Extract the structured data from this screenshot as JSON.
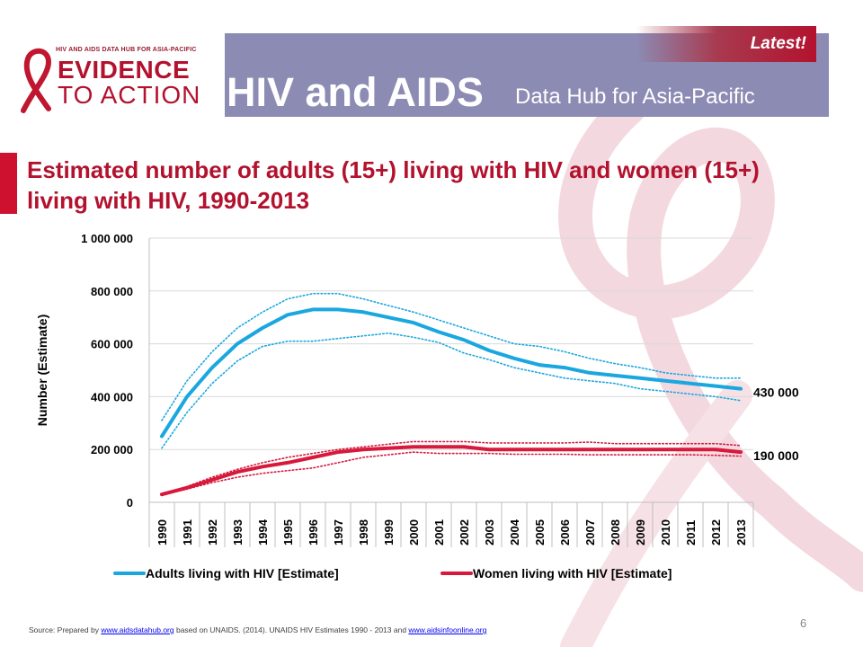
{
  "header": {
    "logo_top": "HIV AND AIDS DATA HUB FOR ASIA-PACIFIC",
    "logo_main": "EVIDENCE",
    "logo_sub": "TO ACTION",
    "title": "HIV and AIDS",
    "subtitle": "Data Hub for Asia-Pacific",
    "badge": "Latest!"
  },
  "colors": {
    "banner": "#8c8bb4",
    "brand_red": "#b3122e",
    "adults_series": "#1aa7e0",
    "women_series": "#d7193c"
  },
  "slide_title": "Estimated number of adults (15+) living with HIV and women (15+) living with HIV, 1990-2013",
  "chart_data": {
    "type": "line",
    "title": "Estimated number of adults (15+) living with HIV and women (15+) living with HIV, 1990-2013",
    "xlabel": "",
    "ylabel": "Number (Estimate)",
    "ylim": [
      0,
      1000000
    ],
    "yticks": [
      0,
      200000,
      400000,
      600000,
      800000,
      1000000
    ],
    "ytick_labels": [
      "0",
      "200 000",
      "400 000",
      "600 000",
      "800 000",
      "1 000 000"
    ],
    "grid": true,
    "legend_position": "bottom",
    "categories": [
      "1990",
      "1991",
      "1992",
      "1993",
      "1994",
      "1995",
      "1996",
      "1997",
      "1998",
      "1999",
      "2000",
      "2001",
      "2002",
      "2003",
      "2004",
      "2005",
      "2006",
      "2007",
      "2008",
      "2009",
      "2010",
      "2011",
      "2012",
      "2013"
    ],
    "series": [
      {
        "name": "Adults living with HIV [Estimate]",
        "color": "#1aa7e0",
        "values": [
          250000,
          400000,
          510000,
          600000,
          660000,
          710000,
          730000,
          730000,
          720000,
          700000,
          680000,
          645000,
          615000,
          575000,
          545000,
          520000,
          510000,
          490000,
          480000,
          470000,
          460000,
          450000,
          440000,
          430000
        ],
        "upper": [
          310000,
          460000,
          570000,
          660000,
          720000,
          770000,
          790000,
          790000,
          770000,
          745000,
          720000,
          690000,
          660000,
          630000,
          600000,
          590000,
          570000,
          545000,
          525000,
          510000,
          490000,
          480000,
          470000,
          470000
        ],
        "lower": [
          205000,
          340000,
          450000,
          535000,
          590000,
          610000,
          610000,
          620000,
          630000,
          640000,
          625000,
          605000,
          565000,
          540000,
          510000,
          490000,
          470000,
          460000,
          450000,
          430000,
          420000,
          410000,
          400000,
          385000
        ],
        "end_label": "430 000"
      },
      {
        "name": "Women living with HIV [Estimate]",
        "color": "#d7193c",
        "values": [
          30000,
          55000,
          85000,
          115000,
          135000,
          150000,
          170000,
          190000,
          200000,
          205000,
          210000,
          210000,
          210000,
          200000,
          200000,
          200000,
          200000,
          200000,
          200000,
          200000,
          200000,
          200000,
          200000,
          190000
        ],
        "upper": [
          32000,
          60000,
          95000,
          125000,
          150000,
          170000,
          185000,
          200000,
          210000,
          220000,
          230000,
          230000,
          230000,
          225000,
          225000,
          225000,
          225000,
          228000,
          222000,
          222000,
          222000,
          222000,
          222000,
          215000
        ],
        "lower": [
          28000,
          50000,
          75000,
          95000,
          110000,
          120000,
          130000,
          150000,
          170000,
          180000,
          190000,
          185000,
          185000,
          185000,
          182000,
          182000,
          182000,
          180000,
          180000,
          180000,
          180000,
          180000,
          178000,
          175000
        ],
        "end_label": "190 000"
      }
    ]
  },
  "footer": {
    "source_prefix": "Source: Prepared by ",
    "source_link1": "www.aidsdatahub.org",
    "source_mid": " based on UNAIDS. (2014). UNAIDS HIV Estimates 1990 - 2013 and ",
    "source_link2": "www.aidsinfoonline.org",
    "page_number": "6"
  }
}
